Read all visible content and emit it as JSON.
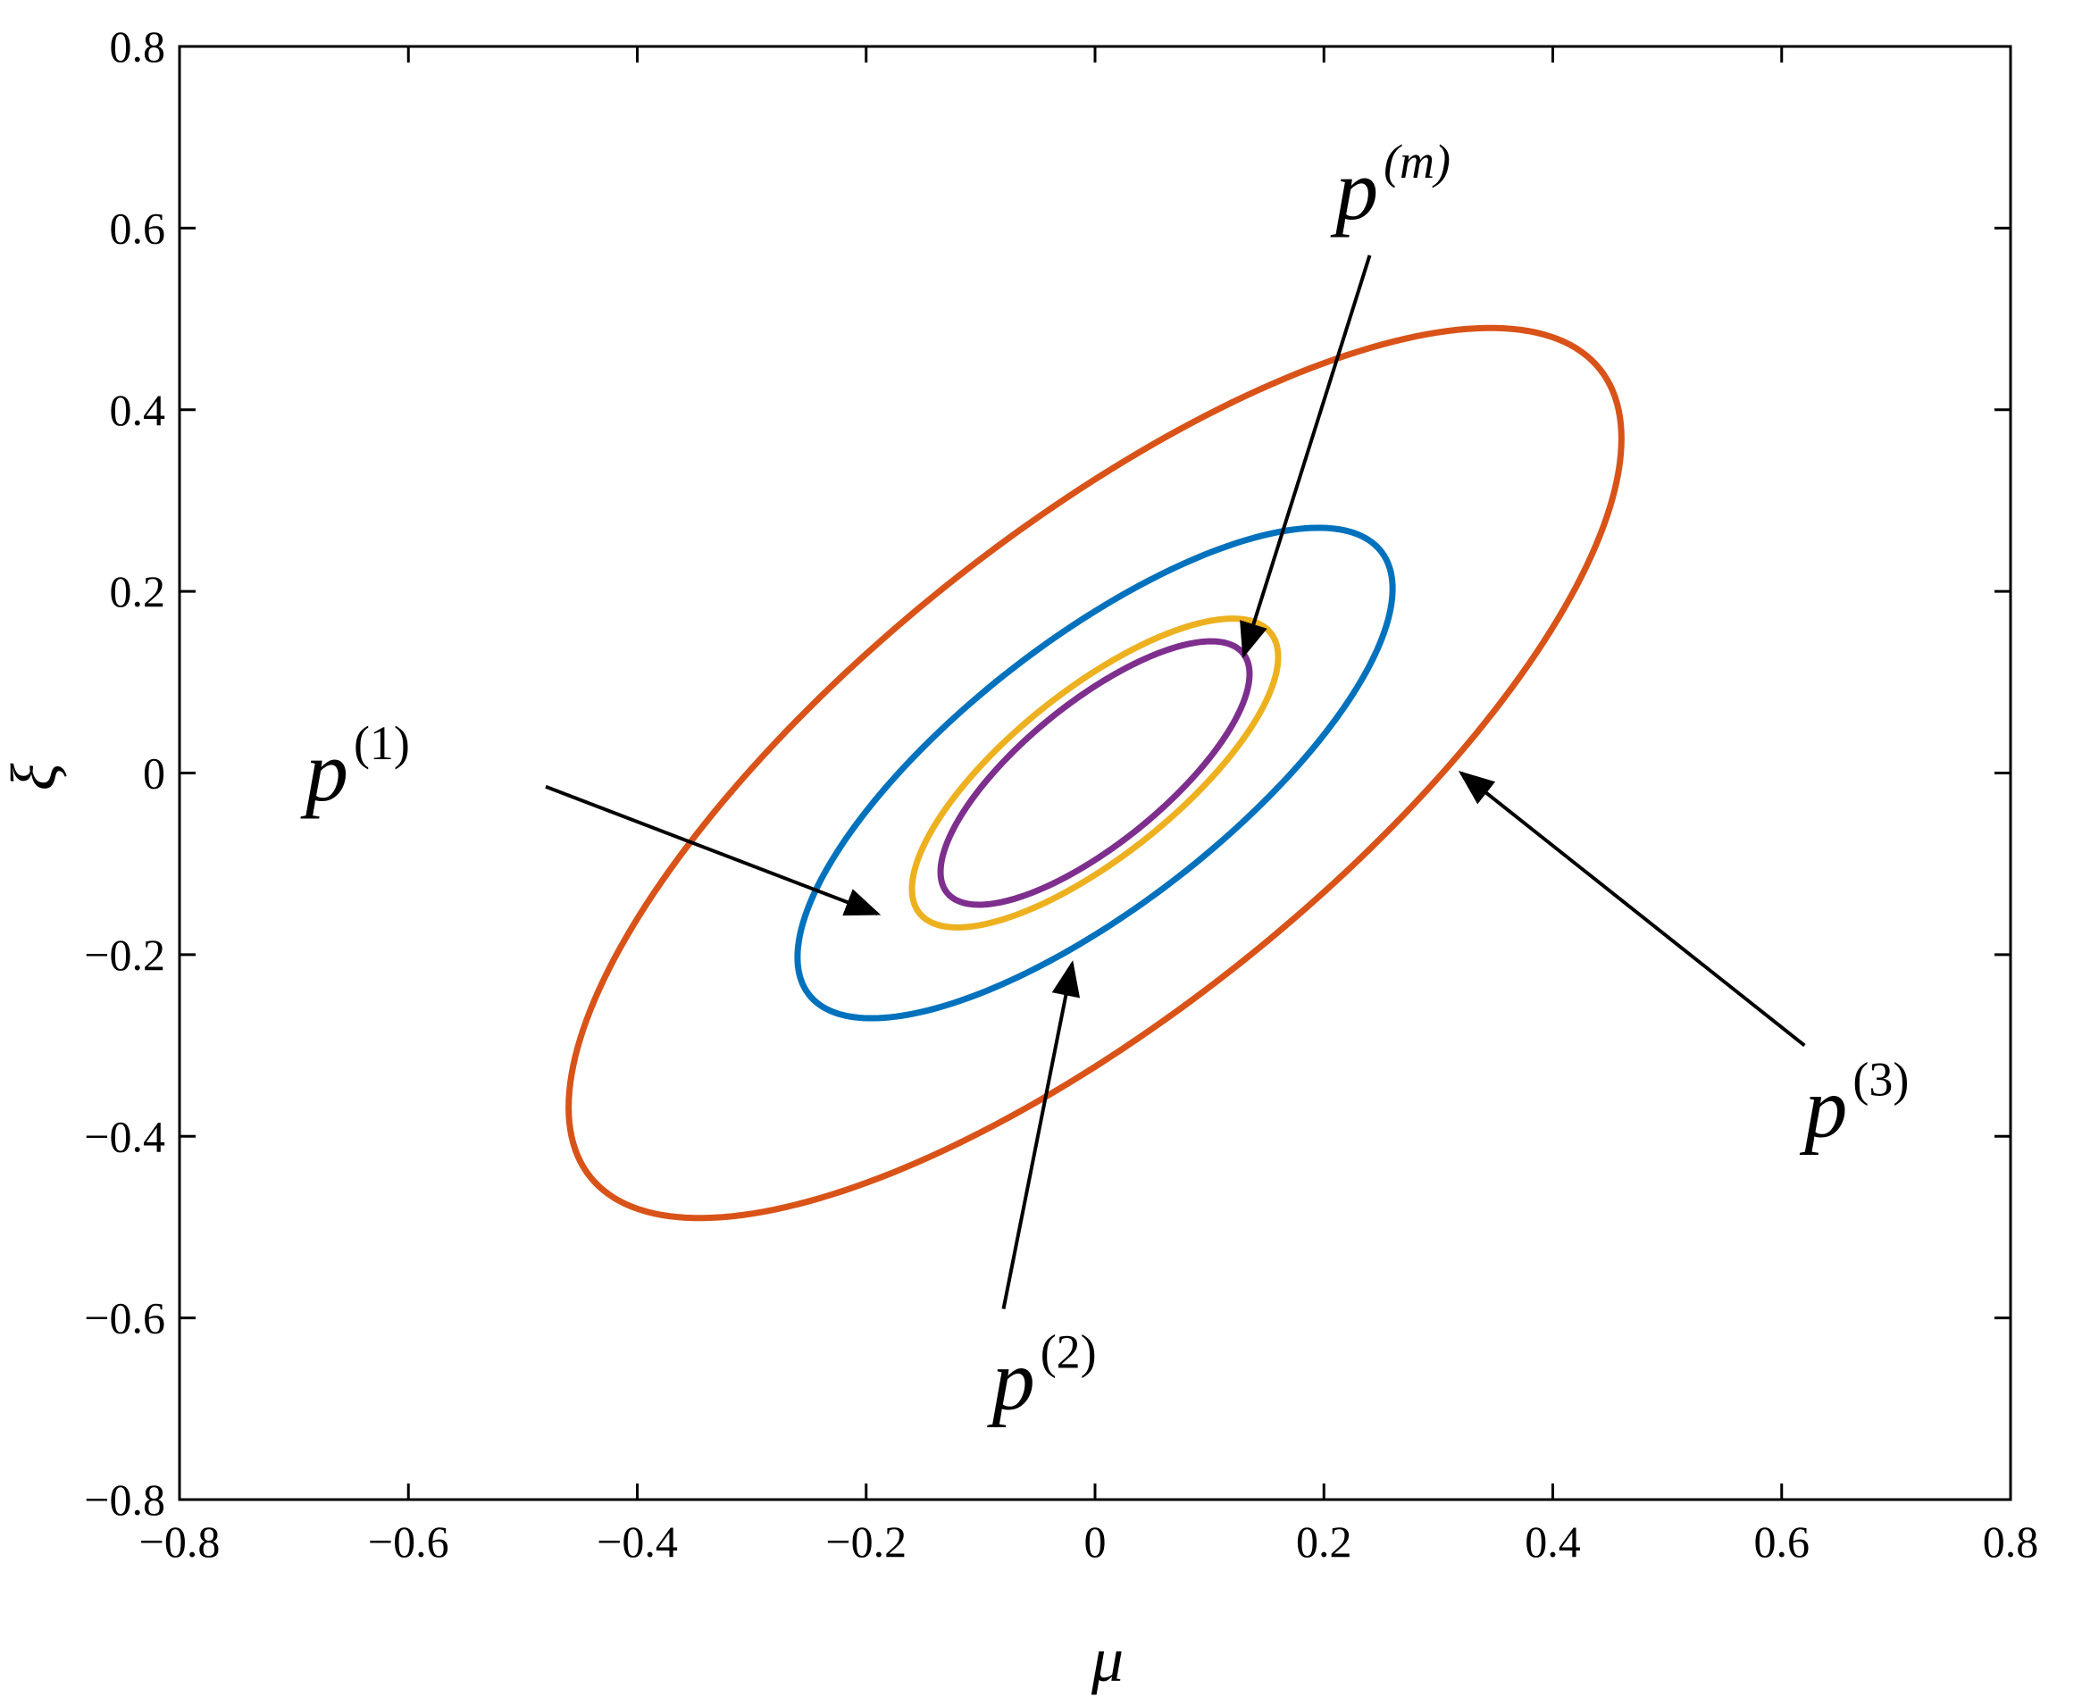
{
  "chart_data": {
    "type": "line",
    "title": "",
    "xlabel": "μ",
    "ylabel": "ξ",
    "xlim": [
      -0.8,
      0.8
    ],
    "ylim": [
      -0.8,
      0.8
    ],
    "xticks": [
      -0.8,
      -0.6,
      -0.4,
      -0.2,
      0,
      0.2,
      0.4,
      0.6,
      0.8
    ],
    "yticks": [
      -0.8,
      -0.6,
      -0.4,
      -0.2,
      0,
      0.2,
      0.4,
      0.6,
      0.8
    ],
    "xtick_labels": [
      "−0.8",
      "−0.6",
      "−0.4",
      "−0.2",
      "0",
      "0.2",
      "0.4",
      "0.6",
      "0.8"
    ],
    "ytick_labels": [
      "−0.8",
      "−0.6",
      "−0.4",
      "−0.2",
      "0",
      "0.2",
      "0.4",
      "0.6",
      "0.8"
    ],
    "grid": false,
    "series": [
      {
        "label_base": "p",
        "label_sup": "(3)",
        "color": "#D95319",
        "shape": "ellipse",
        "center": [
          0,
          0
        ],
        "x_extent": 0.46,
        "y_extent": 0.49
      },
      {
        "label_base": "p",
        "label_sup": "(2)",
        "color": "#0072BD",
        "shape": "ellipse",
        "center": [
          0,
          0
        ],
        "x_extent": 0.26,
        "y_extent": 0.27
      },
      {
        "label_base": "p",
        "label_sup": "(1)",
        "color": "#EDB120",
        "shape": "ellipse",
        "center": [
          0,
          0
        ],
        "x_extent": 0.16,
        "y_extent": 0.17
      },
      {
        "label_base": "p",
        "label_sup": "(m)",
        "color": "#7E2F8E",
        "shape": "ellipse",
        "center": [
          0,
          0
        ],
        "x_extent": 0.135,
        "y_extent": 0.145
      }
    ],
    "annotations": [
      {
        "base": "p",
        "sup": "(m)",
        "sup_italic": true,
        "text_at": [
          0.21,
          0.61
        ],
        "arrow_from": [
          0.24,
          0.57
        ],
        "arrow_to": [
          0.13,
          0.13
        ]
      },
      {
        "base": "p",
        "sup": "(1)",
        "sup_italic": false,
        "text_at": [
          -0.69,
          -0.03
        ],
        "arrow_from": [
          -0.48,
          -0.015
        ],
        "arrow_to": [
          -0.19,
          -0.155
        ]
      },
      {
        "base": "p",
        "sup": "(3)",
        "sup_italic": false,
        "text_at": [
          0.62,
          -0.4
        ],
        "arrow_from": [
          0.62,
          -0.3
        ],
        "arrow_to": [
          0.32,
          0.0
        ]
      },
      {
        "base": "p",
        "sup": "(2)",
        "sup_italic": false,
        "text_at": [
          -0.09,
          -0.7
        ],
        "arrow_from": [
          -0.08,
          -0.59
        ],
        "arrow_to": [
          -0.02,
          -0.21
        ]
      }
    ]
  }
}
